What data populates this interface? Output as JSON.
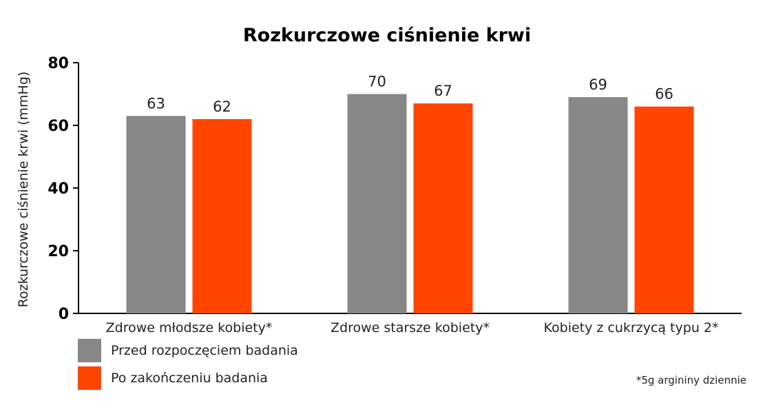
{
  "chart_data": {
    "type": "bar",
    "title": "Rozkurczowe ciśnienie krwi",
    "ylabel": "Rozkurczowe ciśnienie krwi (mmHg)",
    "xlabel": "",
    "ylim": [
      0,
      80
    ],
    "yticks": [
      0,
      20,
      40,
      60,
      80
    ],
    "categories": [
      "Zdrowe młodsze kobiety*",
      "Zdrowe starsze kobiety*",
      "Kobiety z cukrzycą typu 2*"
    ],
    "series": [
      {
        "name": "Przed rozpoczęciem badania",
        "color": "#878787",
        "values": [
          63,
          70,
          69
        ]
      },
      {
        "name": "Po zakończeniu badania",
        "color": "#ff4500",
        "values": [
          62,
          67,
          66
        ]
      }
    ],
    "legend_position": "bottom-left",
    "grid": false,
    "footnote": "*5g argininy dziennie"
  }
}
